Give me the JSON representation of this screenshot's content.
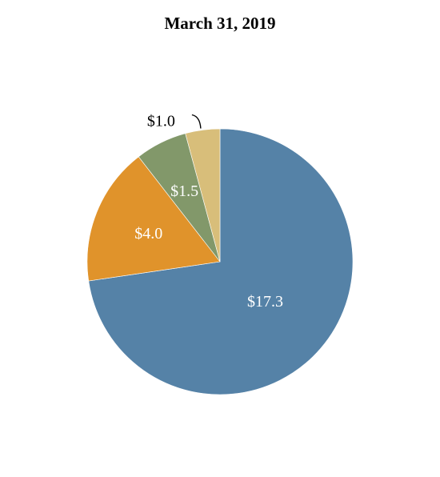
{
  "chart_data": {
    "type": "pie",
    "title": "March 31, 2019",
    "slices": [
      {
        "label": "$17.3",
        "value": 17.3,
        "color": "#5582a7",
        "label_color": "#ffffff"
      },
      {
        "label": "$4.0",
        "value": 4.0,
        "color": "#e0932b",
        "label_color": "#ffffff"
      },
      {
        "label": "$1.5",
        "value": 1.5,
        "color": "#82986a",
        "label_color": "#ffffff"
      },
      {
        "label": "$1.0",
        "value": 1.0,
        "color": "#d8be7a",
        "label_color": "#000000"
      }
    ],
    "start_angle": "12 o'clock",
    "direction": "clockwise",
    "legend": "none"
  }
}
